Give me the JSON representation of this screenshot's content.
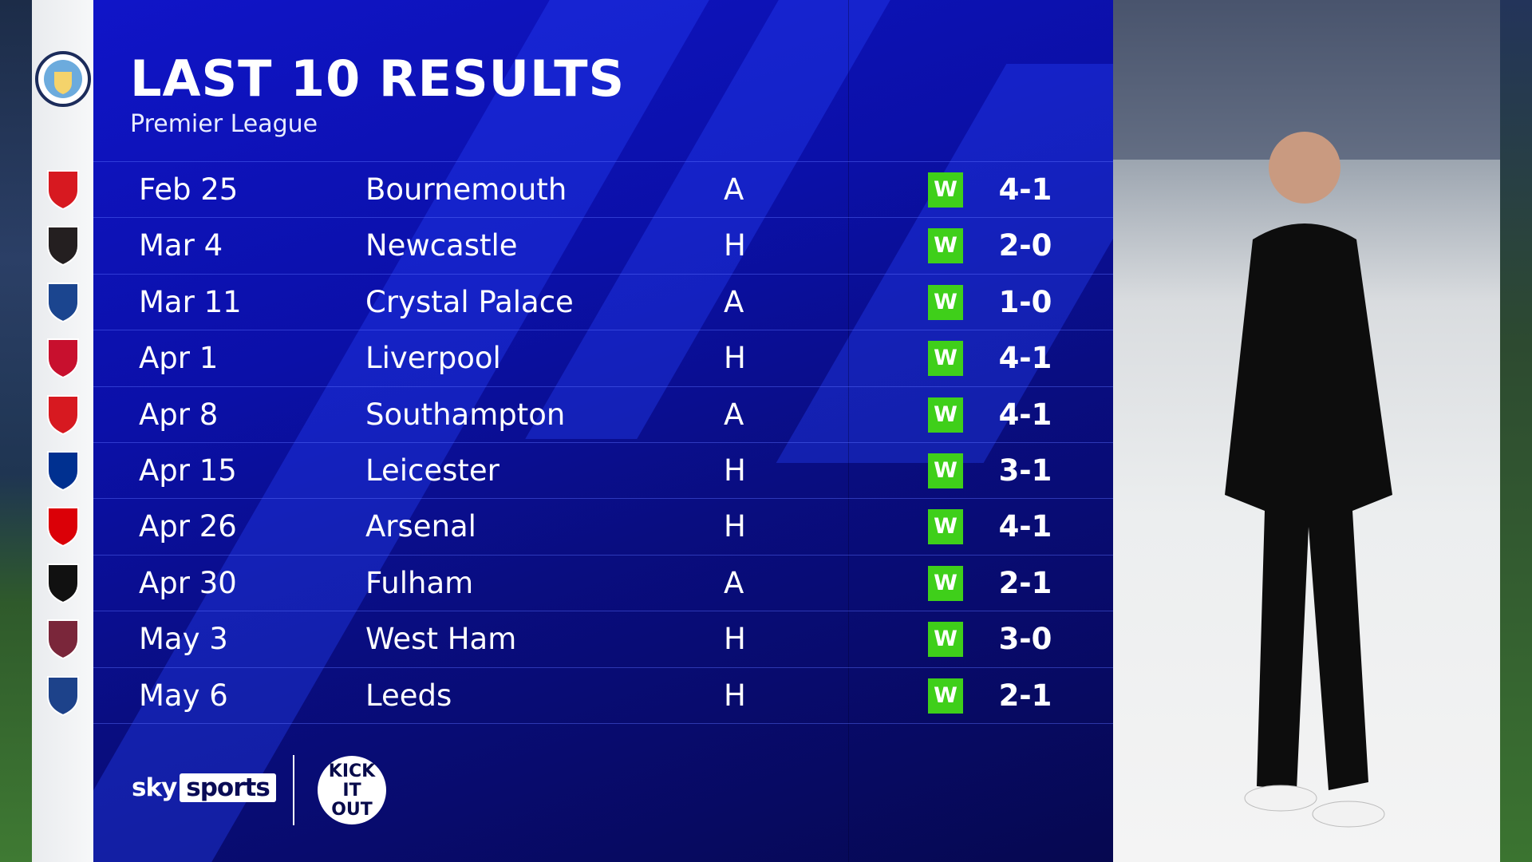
{
  "header": {
    "title": "LAST 10 RESULTS",
    "subtitle": "Premier League",
    "team_crest": "manchester-city-crest"
  },
  "results": [
    {
      "date": "Feb 25",
      "opponent": "Bournemouth",
      "venue": "A",
      "result": "W",
      "score": "4-1",
      "crest_color": "#d71920"
    },
    {
      "date": "Mar 4",
      "opponent": "Newcastle",
      "venue": "H",
      "result": "W",
      "score": "2-0",
      "crest_color": "#241f20"
    },
    {
      "date": "Mar 11",
      "opponent": "Crystal Palace",
      "venue": "A",
      "result": "W",
      "score": "1-0",
      "crest_color": "#1b458f"
    },
    {
      "date": "Apr 1",
      "opponent": "Liverpool",
      "venue": "H",
      "result": "W",
      "score": "4-1",
      "crest_color": "#c8102e"
    },
    {
      "date": "Apr 8",
      "opponent": "Southampton",
      "venue": "A",
      "result": "W",
      "score": "4-1",
      "crest_color": "#d71920"
    },
    {
      "date": "Apr 15",
      "opponent": "Leicester",
      "venue": "H",
      "result": "W",
      "score": "3-1",
      "crest_color": "#003090"
    },
    {
      "date": "Apr 26",
      "opponent": "Arsenal",
      "venue": "H",
      "result": "W",
      "score": "4-1",
      "crest_color": "#db0007"
    },
    {
      "date": "Apr 30",
      "opponent": "Fulham",
      "venue": "A",
      "result": "W",
      "score": "2-1",
      "crest_color": "#111111"
    },
    {
      "date": "May 3",
      "opponent": "West Ham",
      "venue": "H",
      "result": "W",
      "score": "3-0",
      "crest_color": "#7a263a"
    },
    {
      "date": "May 6",
      "opponent": "Leeds",
      "venue": "H",
      "result": "W",
      "score": "2-1",
      "crest_color": "#1d428a"
    }
  ],
  "colors": {
    "win": "#3fcf1a",
    "panel": "#0b10a8"
  },
  "footer": {
    "sky": "sky",
    "sports": "sports",
    "kick_it_out": [
      "KICK",
      "IT",
      "OUT"
    ]
  }
}
